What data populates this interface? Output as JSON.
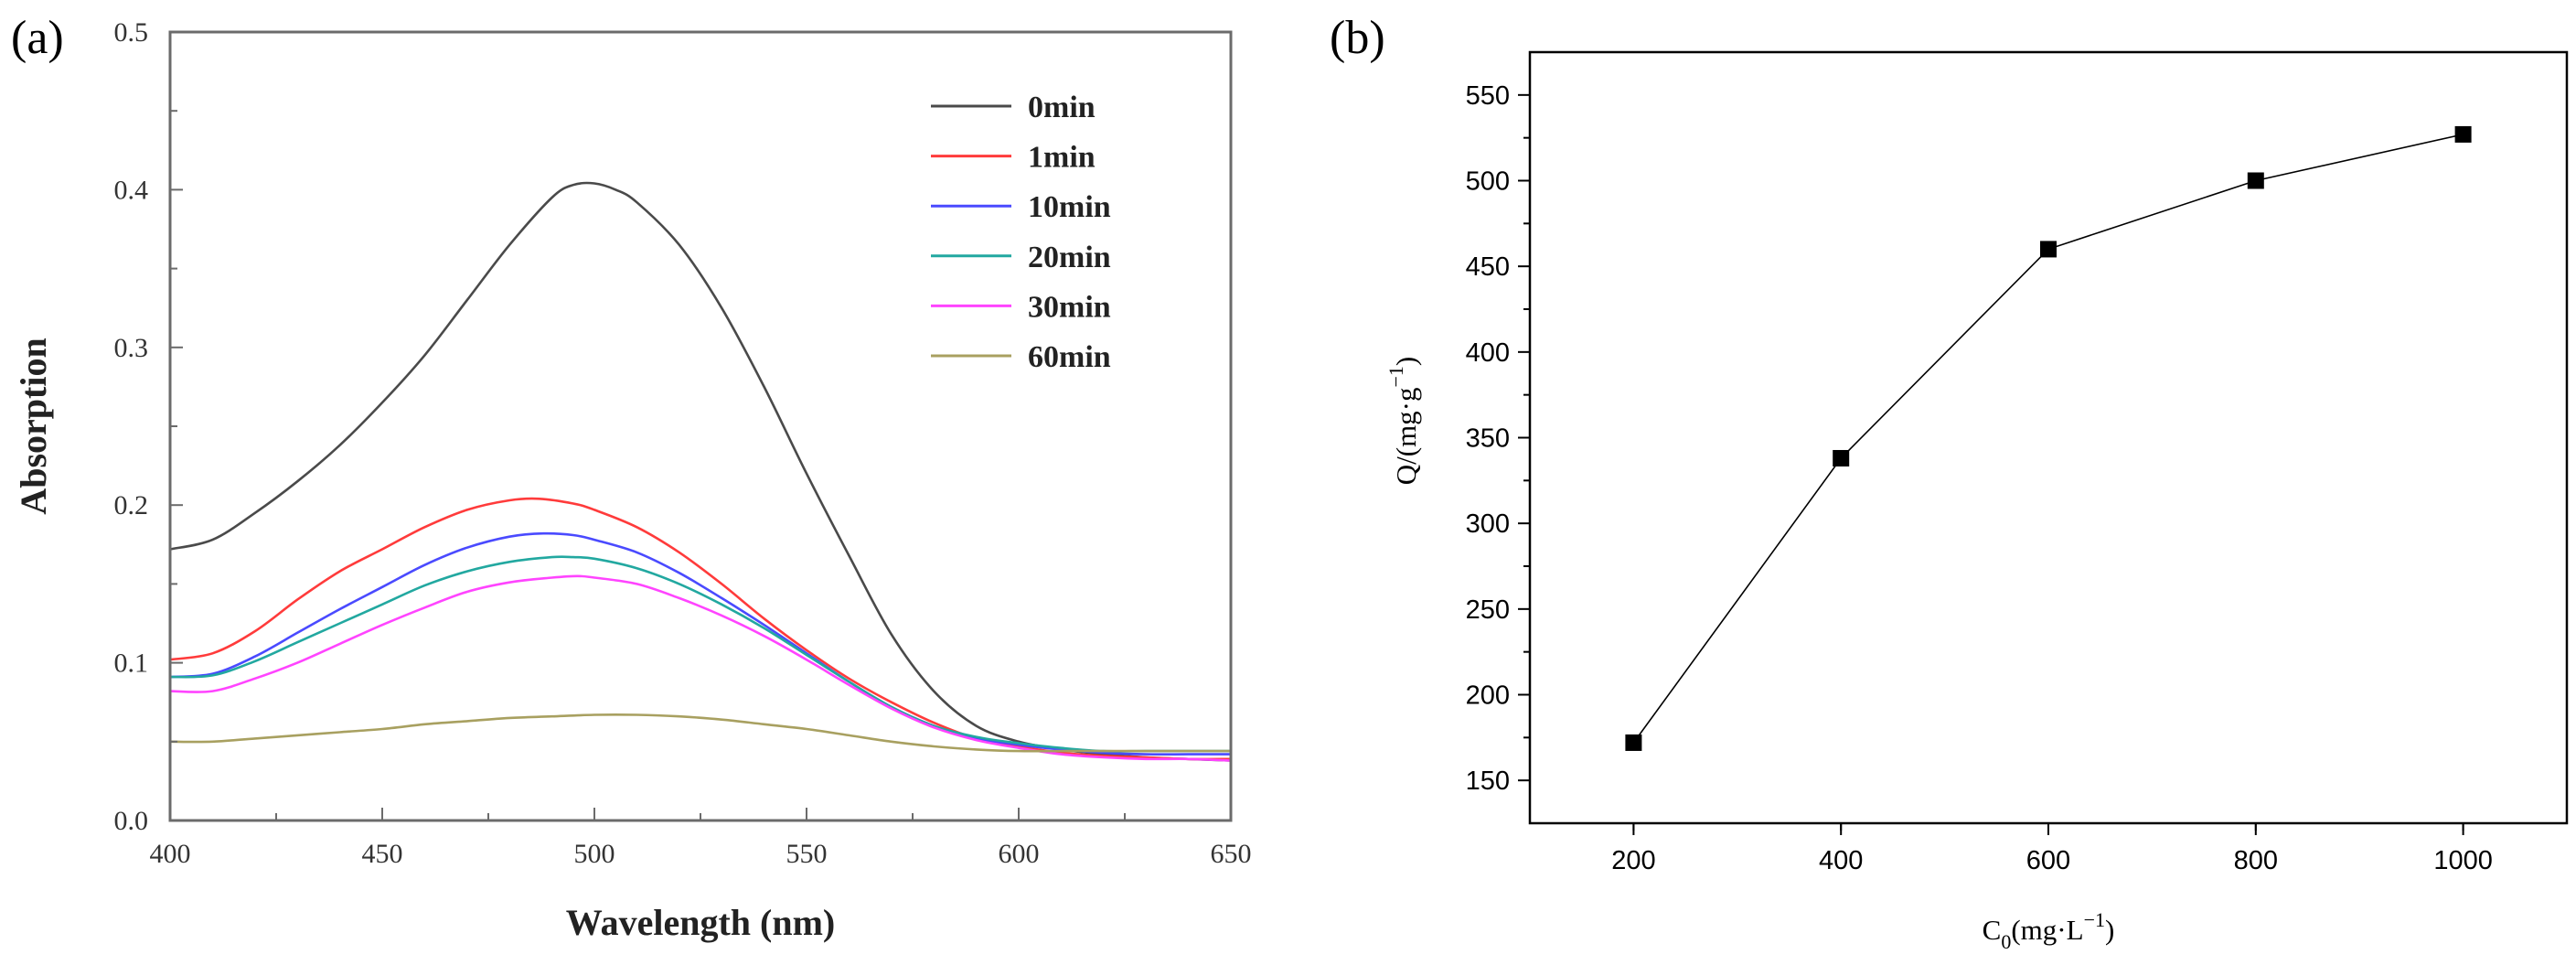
{
  "chart_data": [
    {
      "panel": "(a)",
      "type": "line",
      "title": "",
      "xlabel": "Wavelength (nm)",
      "ylabel": "Absorption",
      "xlim": [
        400,
        650
      ],
      "ylim": [
        0.0,
        0.5
      ],
      "xticks": [
        400,
        450,
        500,
        550,
        600,
        650
      ],
      "yticks": [
        0.0,
        0.1,
        0.2,
        0.3,
        0.4,
        0.5
      ],
      "x_tick_labels": [
        "400",
        "450",
        "500",
        "550",
        "600",
        "650"
      ],
      "y_tick_labels": [
        "0.0",
        "0.1",
        "0.2",
        "0.3",
        "0.4",
        "0.5"
      ],
      "grid": false,
      "legend_position": "top-right",
      "series": [
        {
          "name": "0min",
          "color": "#4a4a4a",
          "x": [
            400,
            410,
            420,
            430,
            440,
            450,
            460,
            470,
            480,
            490,
            495,
            500,
            505,
            510,
            520,
            530,
            540,
            550,
            560,
            570,
            580,
            590,
            600,
            610,
            620,
            630,
            640,
            650
          ],
          "y": [
            0.172,
            0.178,
            0.195,
            0.215,
            0.238,
            0.265,
            0.295,
            0.33,
            0.365,
            0.395,
            0.403,
            0.404,
            0.4,
            0.392,
            0.365,
            0.325,
            0.275,
            0.22,
            0.168,
            0.118,
            0.082,
            0.06,
            0.05,
            0.045,
            0.042,
            0.04,
            0.039,
            0.038
          ]
        },
        {
          "name": "1min",
          "color": "#ff3b3b",
          "x": [
            400,
            410,
            420,
            430,
            440,
            450,
            460,
            470,
            480,
            487,
            495,
            500,
            510,
            520,
            530,
            540,
            550,
            560,
            570,
            580,
            590,
            600,
            610,
            620,
            630,
            640,
            650
          ],
          "y": [
            0.102,
            0.106,
            0.12,
            0.14,
            0.158,
            0.172,
            0.186,
            0.197,
            0.203,
            0.204,
            0.201,
            0.197,
            0.186,
            0.17,
            0.15,
            0.128,
            0.108,
            0.09,
            0.075,
            0.062,
            0.052,
            0.047,
            0.043,
            0.041,
            0.04,
            0.039,
            0.039
          ]
        },
        {
          "name": "10min",
          "color": "#4a4aff",
          "x": [
            400,
            410,
            420,
            430,
            440,
            450,
            460,
            470,
            480,
            488,
            495,
            500,
            510,
            520,
            530,
            540,
            550,
            560,
            570,
            580,
            590,
            600,
            610,
            620,
            630,
            640,
            650
          ],
          "y": [
            0.091,
            0.093,
            0.104,
            0.119,
            0.134,
            0.148,
            0.162,
            0.173,
            0.18,
            0.182,
            0.181,
            0.178,
            0.17,
            0.157,
            0.141,
            0.124,
            0.106,
            0.088,
            0.072,
            0.06,
            0.052,
            0.048,
            0.045,
            0.043,
            0.042,
            0.042,
            0.042
          ]
        },
        {
          "name": "20min",
          "color": "#22a8a0",
          "x": [
            400,
            410,
            420,
            430,
            440,
            450,
            460,
            470,
            480,
            490,
            495,
            500,
            510,
            520,
            530,
            540,
            550,
            560,
            570,
            580,
            590,
            600,
            610,
            620,
            630,
            640,
            650
          ],
          "y": [
            0.091,
            0.092,
            0.101,
            0.113,
            0.125,
            0.137,
            0.149,
            0.158,
            0.164,
            0.167,
            0.167,
            0.166,
            0.16,
            0.15,
            0.137,
            0.122,
            0.105,
            0.088,
            0.072,
            0.06,
            0.053,
            0.049,
            0.046,
            0.044,
            0.044,
            0.044,
            0.044
          ]
        },
        {
          "name": "30min",
          "color": "#ff44ff",
          "x": [
            400,
            410,
            420,
            430,
            440,
            450,
            460,
            470,
            480,
            490,
            496,
            500,
            510,
            520,
            530,
            540,
            550,
            560,
            570,
            580,
            590,
            600,
            610,
            620,
            630,
            640,
            650
          ],
          "y": [
            0.082,
            0.082,
            0.09,
            0.1,
            0.112,
            0.124,
            0.135,
            0.145,
            0.151,
            0.154,
            0.155,
            0.154,
            0.15,
            0.141,
            0.13,
            0.117,
            0.102,
            0.086,
            0.071,
            0.059,
            0.051,
            0.046,
            0.042,
            0.04,
            0.039,
            0.039,
            0.038
          ]
        },
        {
          "name": "60min",
          "color": "#a8a060",
          "x": [
            400,
            410,
            420,
            430,
            440,
            450,
            460,
            470,
            480,
            490,
            500,
            510,
            520,
            530,
            540,
            550,
            560,
            570,
            580,
            590,
            600,
            610,
            620,
            630,
            640,
            650
          ],
          "y": [
            0.05,
            0.05,
            0.052,
            0.054,
            0.056,
            0.058,
            0.061,
            0.063,
            0.065,
            0.066,
            0.067,
            0.067,
            0.066,
            0.064,
            0.061,
            0.058,
            0.054,
            0.05,
            0.047,
            0.045,
            0.044,
            0.044,
            0.044,
            0.044,
            0.044,
            0.044
          ]
        }
      ]
    },
    {
      "panel": "(b)",
      "type": "line",
      "title": "",
      "xlabel": "C",
      "xlabel_sub": "0",
      "xlabel_paren": "(mg·L",
      "xlabel_exp": "−1",
      "xlabel_close": ")",
      "ylabel": "Q/(mg·g",
      "ylabel_exp": "−1",
      "ylabel_close": ")",
      "xlim": [
        100,
        1100
      ],
      "ylim": [
        125,
        575
      ],
      "xticks": [
        200,
        400,
        600,
        800,
        1000
      ],
      "yticks": [
        150,
        200,
        250,
        300,
        350,
        400,
        450,
        500,
        550
      ],
      "x_tick_labels": [
        "200",
        "400",
        "600",
        "800",
        "1000"
      ],
      "y_tick_labels": [
        "150",
        "200",
        "250",
        "300",
        "350",
        "400",
        "450",
        "500",
        "550"
      ],
      "grid": false,
      "marker": "square",
      "series": [
        {
          "name": "Q",
          "color": "#000000",
          "x": [
            200,
            400,
            600,
            800,
            1000
          ],
          "y": [
            172,
            338,
            460,
            500,
            527
          ]
        }
      ]
    }
  ]
}
